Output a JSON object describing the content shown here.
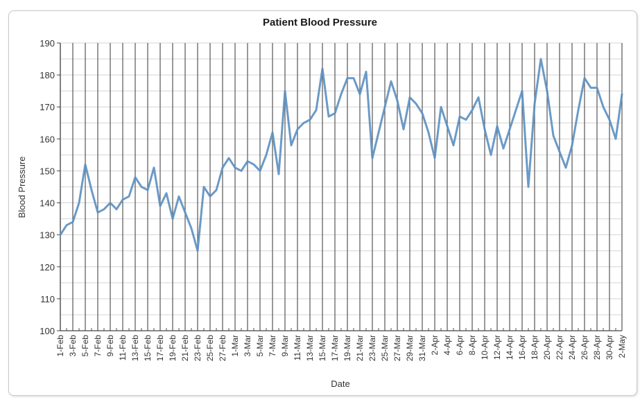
{
  "chart_data": {
    "type": "line",
    "title": "Patient Blood Pressure",
    "xlabel": "Date",
    "ylabel": "Blood Pressure",
    "ylim": [
      100,
      190
    ],
    "yticks": [
      100,
      110,
      120,
      130,
      140,
      150,
      160,
      170,
      180,
      190
    ],
    "grid": true,
    "legend": "none",
    "x": [
      "1-Feb",
      "2-Feb",
      "3-Feb",
      "4-Feb",
      "5-Feb",
      "6-Feb",
      "7-Feb",
      "8-Feb",
      "9-Feb",
      "10-Feb",
      "11-Feb",
      "12-Feb",
      "13-Feb",
      "14-Feb",
      "15-Feb",
      "16-Feb",
      "17-Feb",
      "18-Feb",
      "19-Feb",
      "20-Feb",
      "21-Feb",
      "22-Feb",
      "23-Feb",
      "24-Feb",
      "25-Feb",
      "26-Feb",
      "27-Feb",
      "28-Feb",
      "1-Mar",
      "2-Mar",
      "3-Mar",
      "4-Mar",
      "5-Mar",
      "6-Mar",
      "7-Mar",
      "8-Mar",
      "9-Mar",
      "10-Mar",
      "11-Mar",
      "12-Mar",
      "13-Mar",
      "14-Mar",
      "15-Mar",
      "16-Mar",
      "17-Mar",
      "18-Mar",
      "19-Mar",
      "20-Mar",
      "21-Mar",
      "22-Mar",
      "23-Mar",
      "24-Mar",
      "25-Mar",
      "26-Mar",
      "27-Mar",
      "28-Mar",
      "29-Mar",
      "30-Mar",
      "31-Mar",
      "1-Apr",
      "2-Apr",
      "3-Apr",
      "4-Apr",
      "5-Apr",
      "6-Apr",
      "7-Apr",
      "8-Apr",
      "9-Apr",
      "10-Apr",
      "11-Apr",
      "12-Apr",
      "13-Apr",
      "14-Apr",
      "15-Apr",
      "16-Apr",
      "17-Apr",
      "18-Apr",
      "19-Apr",
      "20-Apr",
      "21-Apr",
      "22-Apr",
      "23-Apr",
      "24-Apr",
      "25-Apr",
      "26-Apr",
      "27-Apr",
      "28-Apr",
      "29-Apr",
      "30-Apr",
      "1-May",
      "2-May"
    ],
    "xtick_labels": [
      "1-Feb",
      "3-Feb",
      "5-Feb",
      "7-Feb",
      "9-Feb",
      "11-Feb",
      "13-Feb",
      "15-Feb",
      "17-Feb",
      "19-Feb",
      "21-Feb",
      "23-Feb",
      "25-Feb",
      "27-Feb",
      "1-Mar",
      "3-Mar",
      "5-Mar",
      "7-Mar",
      "9-Mar",
      "11-Mar",
      "13-Mar",
      "15-Mar",
      "17-Mar",
      "19-Mar",
      "21-Mar",
      "23-Mar",
      "25-Mar",
      "27-Mar",
      "29-Mar",
      "31-Mar",
      "2-Apr",
      "4-Apr",
      "6-Apr",
      "8-Apr",
      "10-Apr",
      "12-Apr",
      "14-Apr",
      "16-Apr",
      "18-Apr",
      "20-Apr",
      "22-Apr",
      "24-Apr",
      "26-Apr",
      "28-Apr",
      "30-Apr",
      "2-May"
    ],
    "series": [
      {
        "name": "Blood Pressure",
        "color": "#5b8fc0",
        "values": [
          130,
          133,
          134,
          140,
          152,
          144,
          137,
          138,
          140,
          138,
          141,
          142,
          148,
          145,
          144,
          151,
          139,
          143,
          135,
          142,
          137,
          132,
          125,
          145,
          142,
          144,
          151,
          154,
          151,
          150,
          153,
          152,
          150,
          155,
          162,
          149,
          175,
          158,
          163,
          165,
          166,
          169,
          182,
          167,
          168,
          174,
          179,
          179,
          174,
          181,
          154,
          162,
          170,
          178,
          172,
          163,
          173,
          171,
          168,
          162,
          154,
          170,
          164,
          158,
          167,
          166,
          169,
          173,
          163,
          155,
          164,
          157,
          163,
          169,
          175,
          145,
          171,
          185,
          175,
          161,
          156,
          151,
          158,
          169,
          179,
          176,
          176,
          170,
          166,
          160,
          174
        ]
      }
    ]
  }
}
